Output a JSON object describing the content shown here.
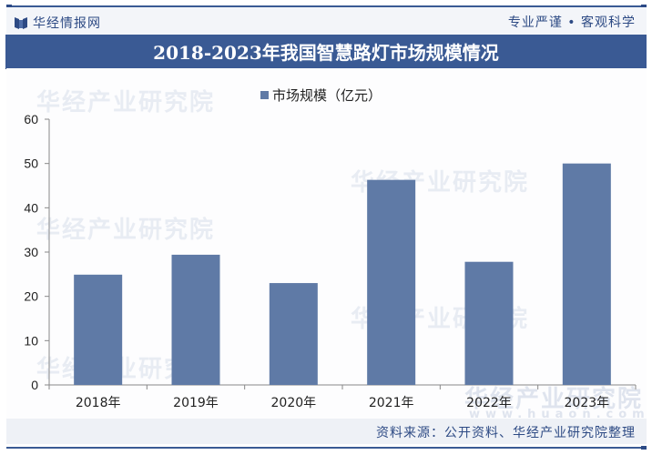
{
  "header": {
    "brand_name": "华经情报网",
    "slogan": "专业严谨 • 客观科学"
  },
  "title": "2018-2023年我国智慧路灯市场规模情况",
  "legend": {
    "label": "市场规模（亿元）"
  },
  "watermarks": [
    "华经产业研究院",
    "华经产业研究院",
    "华经产业研究院",
    "华经产业研究院",
    "华经产业研究院"
  ],
  "footer_watermark": {
    "name": "华经产业研究院",
    "url": "www.huaon.com"
  },
  "source": "资料来源：公开资料、华经产业研究院整理",
  "colors": {
    "bar": "#5f7aa6",
    "title_bar": "#3a5a94",
    "brand": "#2d4a84"
  },
  "chart_data": {
    "type": "bar",
    "title": "2018-2023年我国智慧路灯市场规模情况",
    "categories": [
      "2018年",
      "2019年",
      "2020年",
      "2021年",
      "2022年",
      "2023年"
    ],
    "series": [
      {
        "name": "市场规模（亿元）",
        "values": [
          24.9,
          29.4,
          23.0,
          46.3,
          27.8,
          50.0
        ]
      }
    ],
    "xlabel": "",
    "ylabel": "",
    "ylim": [
      0,
      60
    ],
    "yticks": [
      0,
      10,
      20,
      30,
      40,
      50,
      60
    ],
    "grid": false,
    "legend_position": "top"
  }
}
